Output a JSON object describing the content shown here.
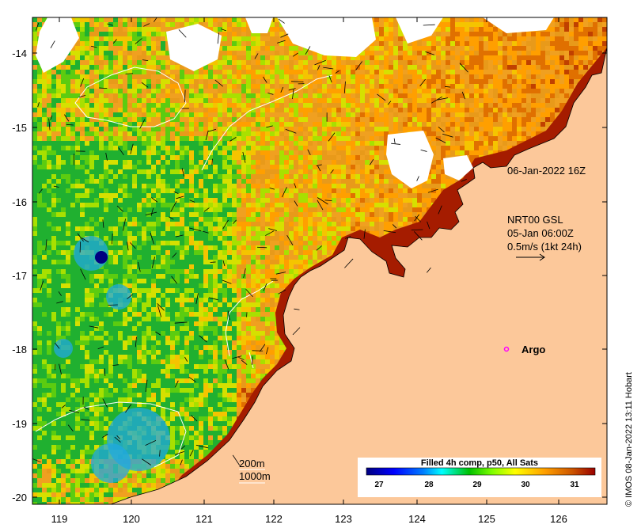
{
  "axes": {
    "x_ticks": [
      "119",
      "120",
      "121",
      "122",
      "123",
      "124",
      "125",
      "126"
    ],
    "y_ticks": [
      "-14",
      "-15",
      "-16",
      "-17",
      "-18",
      "-19",
      "-20"
    ]
  },
  "annotations": {
    "timestamp": "06-Jan-2022 16Z",
    "gsl_title": "NRT00 GSL",
    "gsl_time": "05-Jan 06:00Z",
    "gsl_scale": "0.5m/s (1kt 24h)",
    "argo_label": "Argo",
    "isobath_200": "200m",
    "isobath_1000": "1000m",
    "credit": "© IMOS 08-Jan-2022 13:11 Hobart"
  },
  "colorbar": {
    "title": "Filled 4h comp, p50, All Sats",
    "ticks": [
      "27",
      "28",
      "29",
      "30",
      "31"
    ],
    "colors": [
      "#00007f",
      "#0000ff",
      "#007fff",
      "#00ffff",
      "#00c000",
      "#7fff00",
      "#ffff00",
      "#ff9f00",
      "#cc5500",
      "#990000"
    ]
  },
  "colors": {
    "land": "#fcc89a",
    "coastline": "#000000",
    "argo_marker": "#ff00ff",
    "isobath": "#ffffff"
  }
}
